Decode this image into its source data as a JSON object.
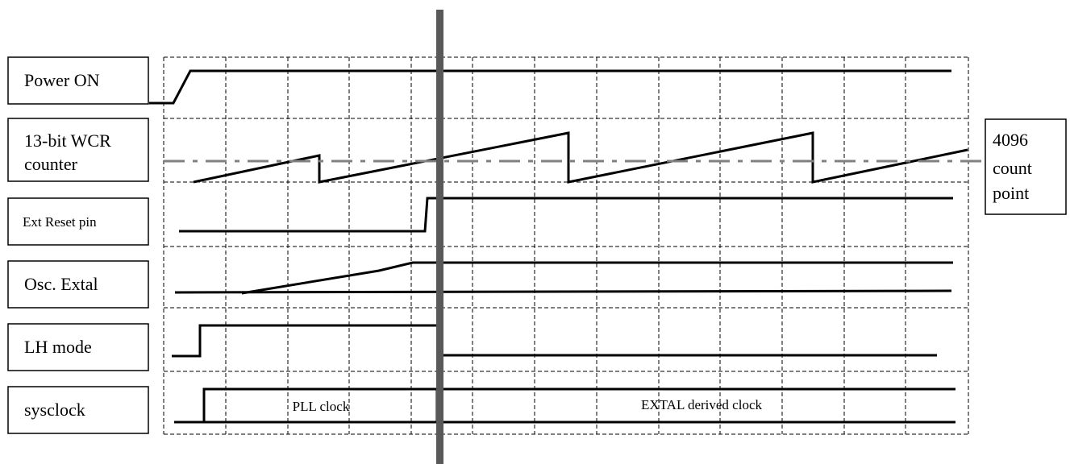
{
  "signals": [
    {
      "id": "power-on",
      "label_lines": [
        "Power ON"
      ]
    },
    {
      "id": "wcr-counter",
      "label_lines": [
        "13-bit WCR",
        "counter"
      ]
    },
    {
      "id": "ext-reset",
      "label_lines": [
        "Ext Reset pin"
      ]
    },
    {
      "id": "osc-extal",
      "label_lines": [
        "Osc. Extal"
      ]
    },
    {
      "id": "lh-mode",
      "label_lines": [
        "LH mode"
      ]
    },
    {
      "id": "sysclock",
      "label_lines": [
        "sysclock"
      ]
    }
  ],
  "segment_labels": {
    "pll": "PLL clock",
    "extal": "EXTAL derived clock"
  },
  "threshold_note_lines": [
    "4096",
    "count",
    "point"
  ],
  "colors": {
    "line": "#000000",
    "grid": "#000000",
    "marker": "#595959",
    "threshold": "#808080"
  }
}
